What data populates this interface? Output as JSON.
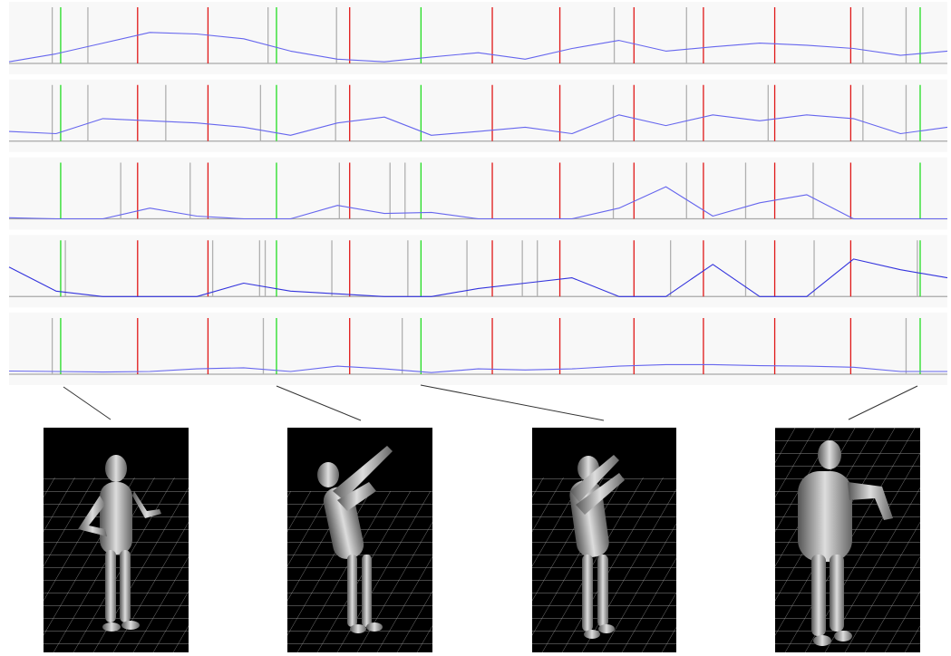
{
  "chart_data": [
    {
      "type": "line",
      "color": "#6666ee",
      "xlim": [
        0,
        100
      ],
      "ylim": [
        0,
        1.05
      ],
      "x": [
        0,
        5,
        10,
        15,
        20,
        25,
        30,
        35,
        40,
        45,
        50,
        55,
        60,
        65,
        70,
        75,
        80,
        85,
        90,
        95,
        100
      ],
      "values": [
        0.03,
        0.18,
        0.38,
        0.58,
        0.55,
        0.46,
        0.23,
        0.08,
        0.03,
        0.12,
        0.2,
        0.08,
        0.28,
        0.43,
        0.23,
        0.31,
        0.38,
        0.34,
        0.28,
        0.15,
        0.23
      ],
      "markers": [
        {
          "color": "#b0b0b0",
          "x": [
            4.6,
            8.4,
            27.6,
            34.9,
            64.5,
            72.2,
            91.0,
            95.6
          ]
        },
        {
          "color": "#e01818",
          "x": [
            13.7,
            21.2,
            36.3,
            51.5,
            58.7,
            66.6,
            74.0,
            81.6,
            89.7
          ]
        },
        {
          "color": "#22dd22",
          "x": [
            5.5,
            28.5,
            43.9,
            97.1
          ]
        }
      ]
    },
    {
      "type": "line",
      "color": "#6666ee",
      "xlim": [
        0,
        100
      ],
      "ylim": [
        0,
        1.05
      ],
      "x": [
        0,
        5,
        10,
        15,
        20,
        25,
        30,
        35,
        40,
        45,
        50,
        55,
        60,
        65,
        70,
        75,
        80,
        85,
        90,
        95,
        100
      ],
      "values": [
        0.18,
        0.14,
        0.42,
        0.38,
        0.34,
        0.26,
        0.11,
        0.34,
        0.45,
        0.11,
        0.18,
        0.26,
        0.14,
        0.49,
        0.29,
        0.49,
        0.38,
        0.49,
        0.42,
        0.14,
        0.26
      ],
      "markers": [
        {
          "color": "#b0b0b0",
          "x": [
            4.6,
            8.4,
            16.7,
            26.8,
            34.8,
            64.4,
            72.2,
            80.9,
            91.0,
            95.6
          ]
        },
        {
          "color": "#e01818",
          "x": [
            13.7,
            21.2,
            36.3,
            51.5,
            58.7,
            66.6,
            74.0,
            81.6,
            89.7
          ]
        },
        {
          "color": "#22dd22",
          "x": [
            5.5,
            28.5,
            43.9,
            97.1
          ]
        }
      ]
    },
    {
      "type": "line",
      "color": "#6666ee",
      "xlim": [
        0,
        100
      ],
      "ylim": [
        0,
        1.05
      ],
      "x": [
        0,
        5,
        10,
        15,
        20,
        25,
        30,
        35,
        40,
        45,
        50,
        55,
        60,
        65,
        70,
        75,
        80,
        85,
        90,
        95,
        100
      ],
      "values": [
        0.02,
        0,
        0,
        0.2,
        0.05,
        0,
        0,
        0.25,
        0.1,
        0.12,
        0,
        0,
        0,
        0.2,
        0.6,
        0.05,
        0.3,
        0.45,
        0,
        0,
        0
      ],
      "markers": [
        {
          "color": "#b0b0b0",
          "x": [
            11.9,
            19.3,
            35.2,
            40.6,
            42.2,
            64.4,
            72.2,
            78.5,
            85.7
          ]
        },
        {
          "color": "#e01818",
          "x": [
            13.7,
            21.2,
            36.3,
            51.5,
            58.7,
            66.6,
            74.0,
            81.6,
            89.7
          ]
        },
        {
          "color": "#22dd22",
          "x": [
            5.5,
            28.5,
            43.9,
            97.1
          ]
        }
      ]
    },
    {
      "type": "line",
      "color": "#3333dd",
      "xlim": [
        0,
        100
      ],
      "ylim": [
        0,
        1.05
      ],
      "x": [
        0,
        5,
        10,
        15,
        20,
        25,
        30,
        35,
        40,
        45,
        50,
        55,
        60,
        65,
        70,
        75,
        80,
        85,
        90,
        95,
        100
      ],
      "values": [
        0.55,
        0.1,
        0,
        0,
        0,
        0.25,
        0.1,
        0.05,
        0,
        0,
        0.15,
        0.25,
        0.35,
        0,
        0,
        0.6,
        0,
        0,
        0.7,
        0.5,
        0.35
      ],
      "markers": [
        {
          "color": "#b0b0b0",
          "x": [
            6.0,
            21.7,
            26.7,
            27.3,
            34.4,
            42.5,
            48.8,
            54.7,
            56.3,
            70.5,
            78.5,
            85.8,
            96.8
          ]
        },
        {
          "color": "#e01818",
          "x": [
            13.7,
            21.2,
            36.3,
            51.5,
            58.7,
            66.6,
            74.0,
            81.6,
            89.7
          ]
        },
        {
          "color": "#22dd22",
          "x": [
            5.5,
            28.5,
            43.9,
            97.1
          ]
        }
      ]
    },
    {
      "type": "line",
      "color": "#6666ee",
      "xlim": [
        0,
        100
      ],
      "ylim": [
        0,
        1.05
      ],
      "x": [
        0,
        5,
        10,
        15,
        20,
        25,
        30,
        35,
        40,
        45,
        50,
        55,
        60,
        65,
        70,
        75,
        80,
        85,
        90,
        95,
        100
      ],
      "values": [
        0.06,
        0.05,
        0.04,
        0.05,
        0.1,
        0.12,
        0.05,
        0.15,
        0.1,
        0.03,
        0.1,
        0.08,
        0.1,
        0.15,
        0.18,
        0.18,
        0.16,
        0.15,
        0.13,
        0.05,
        0.05
      ],
      "markers": [
        {
          "color": "#b0b0b0",
          "x": [
            4.6,
            27.1,
            41.9,
            95.6
          ]
        },
        {
          "color": "#e01818",
          "x": [
            13.7,
            21.2,
            36.3,
            51.5,
            58.7,
            66.6,
            74.0,
            81.6,
            89.7
          ]
        },
        {
          "color": "#22dd22",
          "x": [
            5.5,
            28.5,
            43.9,
            97.1
          ]
        }
      ]
    }
  ]
}
